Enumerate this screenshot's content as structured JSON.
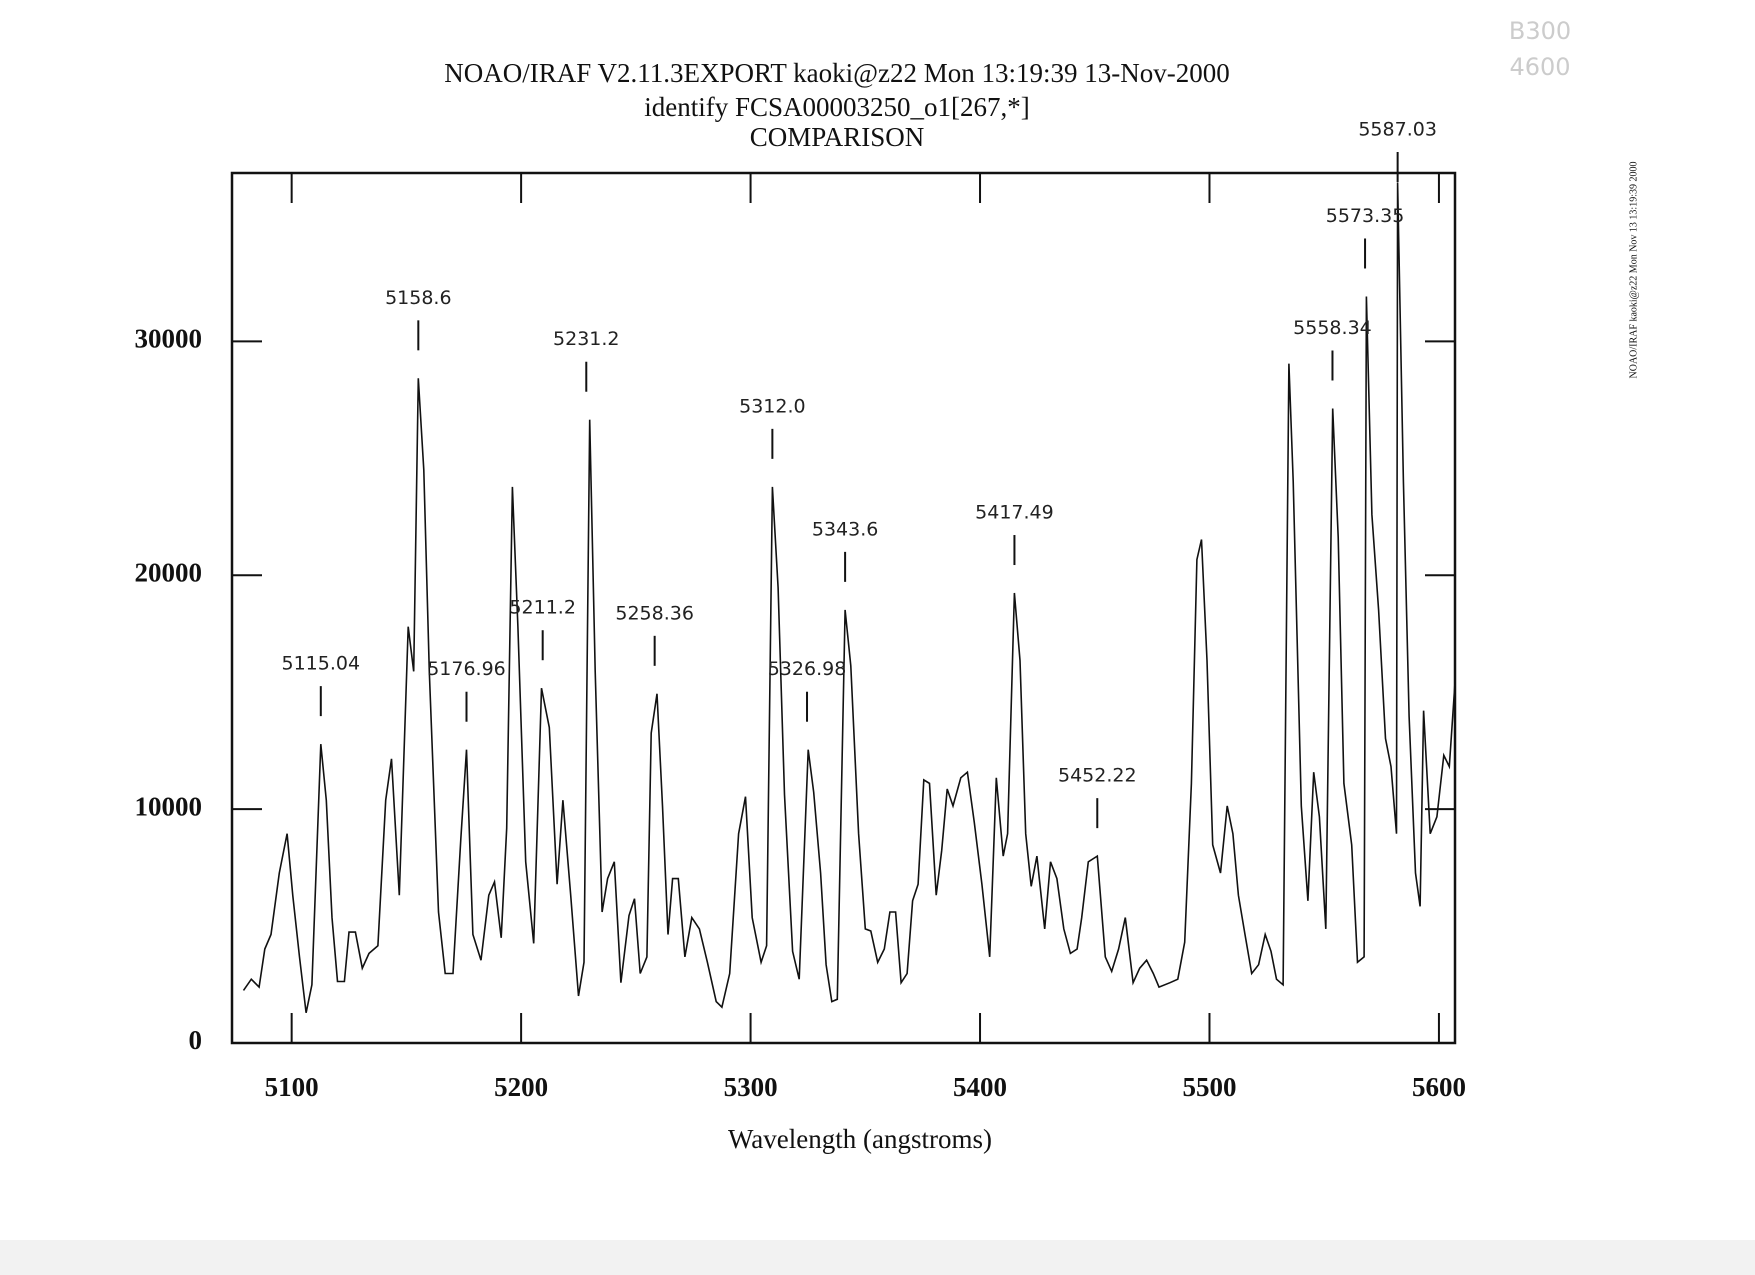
{
  "chart_data": {
    "type": "line",
    "title": "NOAO/IRAF V2.11.3EXPORT kaoki@z22 Mon 13:19:39 13-Nov-2000",
    "subtitle": "identify FCSA00003250_o1[267,*]",
    "subtitle2": "COMPARISON",
    "x_label": "Wavelength (angstroms)",
    "side_text": "NOAO/IRAF kaoki@z22 Mon Nov 13 13:19:39 2000",
    "notes": [
      "B300",
      "4600"
    ],
    "color": "#111111",
    "xlim": [
      5074,
      5607
    ],
    "ylim": [
      0,
      37200
    ],
    "xticks": [
      5100,
      5200,
      5300,
      5400,
      5500,
      5600
    ],
    "yticks": [
      0,
      10000,
      20000,
      30000
    ],
    "x": [
      5079,
      5082.4,
      5085.8,
      5088.3,
      5091,
      5094.6,
      5098,
      5100.5,
      5103.4,
      5106.3,
      5108.8,
      5112.7,
      5115.1,
      5117.6,
      5120,
      5123,
      5125,
      5127.8,
      5130.8,
      5133.7,
      5137.6,
      5141,
      5143.5,
      5146.9,
      5150.8,
      5153.2,
      5155.2,
      5157.6,
      5160,
      5164,
      5166.9,
      5170.3,
      5173.7,
      5176.2,
      5179,
      5182.5,
      5185.9,
      5188.4,
      5191.3,
      5193.7,
      5196.2,
      5198.6,
      5202,
      5205.5,
      5208.9,
      5212.3,
      5215.7,
      5218.2,
      5221.6,
      5225,
      5227.4,
      5229.9,
      5232.3,
      5235.3,
      5237.7,
      5240.6,
      5243.5,
      5247,
      5249.4,
      5251.9,
      5254.8,
      5256.7,
      5259.2,
      5261.6,
      5264,
      5266,
      5268.5,
      5271.4,
      5274.4,
      5277.7,
      5281.2,
      5285,
      5287.5,
      5290.9,
      5294.8,
      5297.8,
      5300.7,
      5304.6,
      5307,
      5309.5,
      5312,
      5314.8,
      5318.3,
      5321.2,
      5325.1,
      5327.5,
      5330.5,
      5332.9,
      5335.4,
      5337.8,
      5341.2,
      5343.7,
      5347.1,
      5350,
      5352.4,
      5355.4,
      5358.3,
      5360.7,
      5363.2,
      5365.6,
      5368.2,
      5370.6,
      5373,
      5375.5,
      5378,
      5380.9,
      5383.3,
      5385.7,
      5388.2,
      5391.6,
      5394.5,
      5397.5,
      5400.8,
      5404.2,
      5407.1,
      5410.1,
      5412,
      5415,
      5417.4,
      5419.9,
      5422.3,
      5424.8,
      5428.2,
      5430.7,
      5433.5,
      5436.5,
      5439.4,
      5442.3,
      5444.3,
      5447.2,
      5451.1,
      5454.6,
      5457.4,
      5460.4,
      5463.3,
      5466.7,
      5469.6,
      5472.6,
      5475.5,
      5478,
      5482.8,
      5486.2,
      5489.2,
      5492.1,
      5494.5,
      5496.5,
      5498.9,
      5501.4,
      5504.8,
      5507.7,
      5510.2,
      5512.6,
      5515.5,
      5518.4,
      5521.4,
      5524.3,
      5526.8,
      5529.2,
      5532.1,
      5534.6,
      5536.5,
      5540,
      5542.9,
      5545.4,
      5547.9,
      5550.7,
      5553.7,
      5556.1,
      5558.6,
      5562,
      5564.5,
      5567.4,
      5568.4,
      5570.8,
      5573.7,
      5576.7,
      5579.1,
      5581.5,
      5582,
      5584.5,
      5587,
      5589.8,
      5591.8,
      5593.3,
      5596.2,
      5599.1,
      5602.1,
      5604.5,
      5607
    ],
    "values": [
      2250,
      2730,
      2390,
      4020,
      4640,
      7270,
      8950,
      6300,
      3680,
      1290,
      2490,
      12780,
      10380,
      5360,
      2630,
      2630,
      4740,
      4740,
      3200,
      3830,
      4160,
      10380,
      12150,
      6320,
      17800,
      15890,
      28420,
      24500,
      15890,
      5600,
      2970,
      2970,
      8710,
      12540,
      4640,
      3540,
      6320,
      6890,
      4500,
      9190,
      23780,
      17800,
      7750,
      4260,
      15170,
      13490,
      6790,
      10380,
      6320,
      2010,
      3450,
      26650,
      15890,
      5600,
      7030,
      7750,
      2580,
      5450,
      6170,
      2970,
      3680,
      13250,
      14930,
      10140,
      4640,
      7030,
      7030,
      3680,
      5360,
      4880,
      3450,
      1770,
      1530,
      2970,
      8950,
      10530,
      5360,
      3450,
      4160,
      23780,
      19470,
      10620,
      3920,
      2730,
      12540,
      10720,
      7270,
      3350,
      1770,
      1870,
      18520,
      16130,
      8950,
      4880,
      4790,
      3450,
      4020,
      5600,
      5600,
      2580,
      2970,
      6080,
      6790,
      11250,
      11100,
      6320,
      8230,
      10860,
      10140,
      11340,
      11580,
      9430,
      6790,
      3680,
      11340,
      7990,
      8950,
      19240,
      16360,
      8950,
      6700,
      7990,
      4880,
      7750,
      7030,
      4880,
      3830,
      4020,
      5360,
      7750,
      7990,
      3680,
      3060,
      4020,
      5360,
      2580,
      3200,
      3540,
      2970,
      2390,
      2580,
      2730,
      4310,
      11100,
      20670,
      21530,
      16360,
      8470,
      7270,
      10140,
      8950,
      6320,
      4640,
      2970,
      3350,
      4640,
      3920,
      2730,
      2490,
      29050,
      24020,
      10140,
      6080,
      11580,
      9670,
      4880,
      27130,
      21630,
      11100,
      8470,
      3450,
      3680,
      31920,
      22590,
      18520,
      13020,
      11820,
      8950,
      36800,
      24020,
      13970,
      7270,
      5840,
      14210,
      8950,
      9670,
      12300,
      11820,
      15410
    ],
    "annotations": [
      {
        "text": "5115.04",
        "x": 5112.7
      },
      {
        "text": "5158.6",
        "x": 5155.2
      },
      {
        "text": "5176.96",
        "x": 5176.2
      },
      {
        "text": "5211.2",
        "x": 5209.4
      },
      {
        "text": "5231.2",
        "x": 5228.4
      },
      {
        "text": "5258.36",
        "x": 5258.2
      },
      {
        "text": "5312.0",
        "x": 5309.5
      },
      {
        "text": "5326.98",
        "x": 5324.6
      },
      {
        "text": "5343.6",
        "x": 5341.2
      },
      {
        "text": "5417.49",
        "x": 5415
      },
      {
        "text": "5452.22",
        "x": 5451.1
      },
      {
        "text": "5558.34",
        "x": 5553.6
      },
      {
        "text": "5573.35",
        "x": 5567.8
      },
      {
        "text": "5587.03",
        "x": 5582
      }
    ]
  }
}
